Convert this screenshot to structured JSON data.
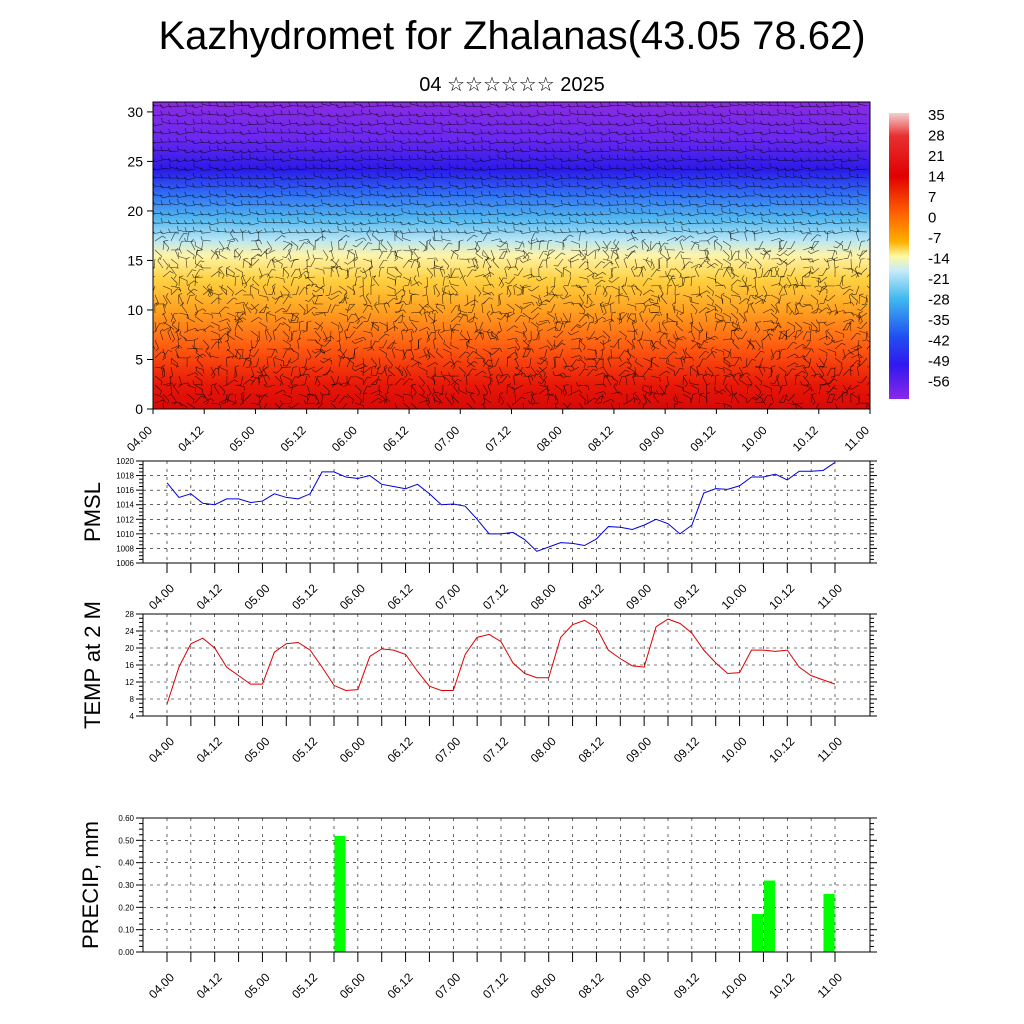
{
  "header": {
    "title": "Kazhydromet for Zhalanas(43.05 78.62)",
    "subtitle": "04 ☆☆☆☆☆☆ 2025"
  },
  "time_labels": [
    "04.00",
    "04.12",
    "05.00",
    "05.12",
    "06.00",
    "06.12",
    "07.00",
    "07.12",
    "08.00",
    "08.12",
    "09.00",
    "09.12",
    "10.00",
    "10.12",
    "11.00"
  ],
  "colors": {
    "pmsl_line": "#0000dd",
    "temp_line": "#dd0000",
    "precip_bar": "#00ff00",
    "colorbar_top": "#f2c8c8",
    "colorbar_warm": "#e00000",
    "colorbar_mid": "#fff8a0",
    "colorbar_cold": "#3a1cf0",
    "colorbar_bottom": "#8a28e8"
  },
  "chart_data": [
    {
      "type": "heatmap",
      "title": "",
      "y_ticks": [
        0,
        5,
        10,
        15,
        20,
        25,
        30
      ],
      "ylim": [
        0,
        31
      ],
      "colorbar": {
        "labels": [
          "35",
          "28",
          "21",
          "14",
          "7",
          "0",
          "-7",
          "-14",
          "-21",
          "-28",
          "-35",
          "-42",
          "-49",
          "-56"
        ]
      },
      "overlay": "wind barbs"
    },
    {
      "type": "line",
      "ylabel": "PMSL",
      "ylim": [
        1006,
        1020
      ],
      "y_ticks": [
        1006,
        1008,
        1010,
        1012,
        1014,
        1016,
        1018,
        1020
      ],
      "x_hours": [
        0,
        3,
        6,
        9,
        12,
        15,
        18,
        21,
        24,
        27,
        30,
        33,
        36,
        39,
        42,
        45,
        48,
        51,
        54,
        57,
        60,
        63,
        66,
        69,
        72,
        75,
        78,
        81,
        84,
        87,
        90,
        93,
        96,
        99,
        102,
        105,
        108,
        111,
        114,
        117,
        120,
        123,
        126,
        129,
        132,
        135,
        138,
        141,
        144,
        147,
        150,
        153,
        156,
        159,
        162,
        165,
        168
      ],
      "values": [
        1017.0,
        1015.0,
        1015.5,
        1014.2,
        1014.0,
        1014.8,
        1014.8,
        1014.3,
        1014.5,
        1015.5,
        1015.0,
        1014.8,
        1015.5,
        1018.5,
        1018.5,
        1017.8,
        1017.6,
        1018.0,
        1016.8,
        1016.5,
        1016.2,
        1016.8,
        1015.5,
        1014.0,
        1014.1,
        1013.8,
        1012.0,
        1010.0,
        1010.0,
        1010.2,
        1009.2,
        1007.6,
        1008.2,
        1008.8,
        1008.7,
        1008.4,
        1009.3,
        1011.0,
        1010.9,
        1010.6,
        1011.2,
        1012.0,
        1011.4,
        1010.0,
        1011.2,
        1015.6,
        1016.2,
        1016.1,
        1016.6,
        1017.8,
        1017.8,
        1018.2,
        1017.4,
        1018.6,
        1018.6,
        1018.7,
        1019.8
      ]
    },
    {
      "type": "line",
      "ylabel": "TEMP at 2 M",
      "ylim": [
        4,
        28
      ],
      "y_ticks": [
        4,
        8,
        12,
        16,
        20,
        24,
        28
      ],
      "x_hours": [
        0,
        3,
        6,
        9,
        12,
        15,
        18,
        21,
        24,
        27,
        30,
        33,
        36,
        39,
        42,
        45,
        48,
        51,
        54,
        57,
        60,
        63,
        66,
        69,
        72,
        75,
        78,
        81,
        84,
        87,
        90,
        93,
        96,
        99,
        102,
        105,
        108,
        111,
        114,
        117,
        120,
        123,
        126,
        129,
        132,
        135,
        138,
        141,
        144,
        147,
        150,
        153,
        156,
        159,
        162,
        165,
        168
      ],
      "values": [
        6.8,
        15.5,
        21.0,
        22.3,
        20.0,
        15.5,
        13.5,
        11.5,
        11.5,
        19.0,
        21.0,
        21.3,
        19.5,
        15.5,
        11.2,
        10.0,
        10.2,
        18.0,
        19.8,
        19.5,
        18.5,
        14.5,
        11.0,
        10.0,
        10.0,
        18.5,
        22.5,
        23.2,
        21.5,
        16.5,
        14.0,
        13.0,
        13.0,
        22.5,
        25.5,
        26.5,
        24.8,
        19.5,
        17.5,
        15.8,
        15.5,
        25.0,
        26.8,
        25.8,
        23.5,
        19.5,
        16.5,
        14.0,
        14.2,
        19.5,
        19.5,
        19.2,
        19.5,
        15.5,
        13.5,
        12.5,
        11.5
      ]
    },
    {
      "type": "bar",
      "ylabel": "PRECIP, mm",
      "ylim": [
        0,
        0.6
      ],
      "y_ticks": [
        "0.00",
        "0.10",
        "0.20",
        "0.30",
        "0.40",
        "0.50",
        "0.60"
      ],
      "bars": [
        {
          "x_hours": 42,
          "value": 0.52
        },
        {
          "x_hours": 147,
          "value": 0.17
        },
        {
          "x_hours": 150,
          "value": 0.32
        },
        {
          "x_hours": 165,
          "value": 0.26
        }
      ]
    }
  ]
}
